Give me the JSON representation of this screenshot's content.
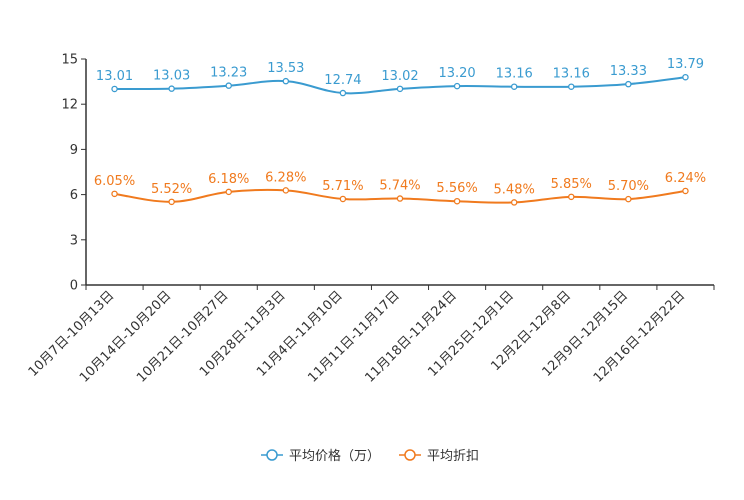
{
  "chart_data": {
    "type": "line",
    "categories": [
      "10月7日-10月13日",
      "10月14日-10月20日",
      "10月21日-10月27日",
      "10月28日-11月3日",
      "11月4日-11月10日",
      "11月11日-11月17日",
      "11月18日-11月24日",
      "11月25日-12月1日",
      "12月2日-12月8日",
      "12月9日-12月15日",
      "12月16日-12月22日"
    ],
    "series": [
      {
        "name": "平均价格（万）",
        "color": "#3a9bd0",
        "values": [
          13.01,
          13.03,
          13.23,
          13.53,
          12.74,
          13.02,
          13.2,
          13.16,
          13.16,
          13.33,
          13.79
        ],
        "labels": [
          "13.01",
          "13.03",
          "13.23",
          "13.53",
          "12.74",
          "13.02",
          "13.20",
          "13.16",
          "13.16",
          "13.33",
          "13.79"
        ]
      },
      {
        "name": "平均折扣",
        "color": "#f07a1e",
        "values": [
          6.05,
          5.52,
          6.18,
          6.28,
          5.71,
          5.74,
          5.56,
          5.48,
          5.85,
          5.7,
          6.24
        ],
        "labels": [
          "6.05%",
          "5.52%",
          "6.18%",
          "6.28%",
          "5.71%",
          "5.74%",
          "5.56%",
          "5.48%",
          "5.85%",
          "5.70%",
          "6.24%"
        ]
      }
    ],
    "yticks": [
      "0",
      "3",
      "6",
      "9",
      "12",
      "15"
    ],
    "ylim": [
      0,
      15
    ],
    "title": "",
    "xlabel": "",
    "ylabel": "",
    "grid": false,
    "legend_position": "bottom-center",
    "axis_color": "#333333"
  }
}
